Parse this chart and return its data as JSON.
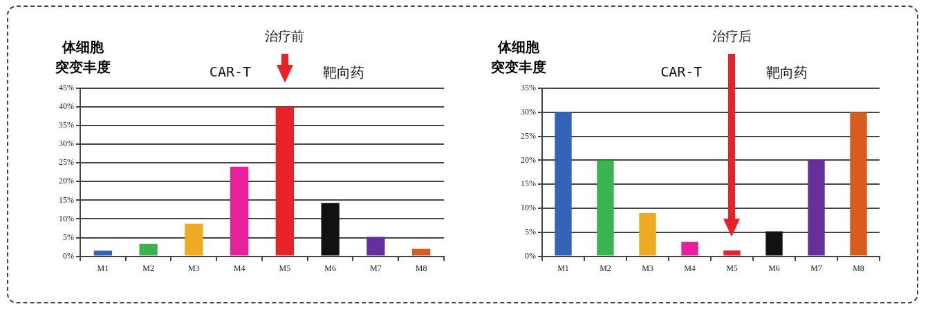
{
  "chart_data": [
    {
      "type": "bar",
      "title": "治疗前",
      "ylabel": "体细胞突变丰度",
      "annotations": [
        "CAR-T",
        "靶向药"
      ],
      "categories": [
        "M1",
        "M2",
        "M3",
        "M4",
        "M5",
        "M6",
        "M7",
        "M8"
      ],
      "values": [
        1.5,
        3.3,
        8.7,
        24,
        40,
        14.3,
        5.2,
        2
      ],
      "colors": [
        "#3563b8",
        "#3bb34f",
        "#eeaa22",
        "#e8209a",
        "#e82228",
        "#111111",
        "#66309a",
        "#d85c20"
      ],
      "ylim": [
        0,
        45
      ],
      "yticks": [
        {
          "value": 0,
          "label": "0%"
        },
        {
          "value": 5,
          "label": "5%"
        },
        {
          "value": 10,
          "label": "10%"
        },
        {
          "value": 15,
          "label": "15%"
        },
        {
          "value": 20,
          "label": "20%"
        },
        {
          "value": 25,
          "label": "25%"
        },
        {
          "value": 30,
          "label": "30%"
        },
        {
          "value": 35,
          "label": "35%"
        },
        {
          "value": 40,
          "label": "40%"
        },
        {
          "value": 45,
          "label": "45%"
        }
      ],
      "grid": "y"
    },
    {
      "type": "bar",
      "title": "治疗后",
      "ylabel": "体细胞突变丰度",
      "annotations": [
        "CAR-T",
        "靶向药"
      ],
      "categories": [
        "M1",
        "M2",
        "M3",
        "M4",
        "M5",
        "M6",
        "M7",
        "M8"
      ],
      "values": [
        30,
        20,
        9,
        3,
        1.2,
        5.2,
        20,
        30
      ],
      "colors": [
        "#3563b8",
        "#3bb34f",
        "#eeaa22",
        "#e8209a",
        "#e82228",
        "#111111",
        "#66309a",
        "#d85c20"
      ],
      "ylim": [
        0,
        35
      ],
      "yticks": [
        {
          "value": 0,
          "label": "0%"
        },
        {
          "value": 5,
          "label": "5%"
        },
        {
          "value": 10,
          "label": "10%"
        },
        {
          "value": 15,
          "label": "15%"
        },
        {
          "value": 20,
          "label": "20%"
        },
        {
          "value": 25,
          "label": "25%"
        },
        {
          "value": 30,
          "label": "30%"
        },
        {
          "value": 35,
          "label": "35%"
        }
      ],
      "grid": "y"
    }
  ]
}
